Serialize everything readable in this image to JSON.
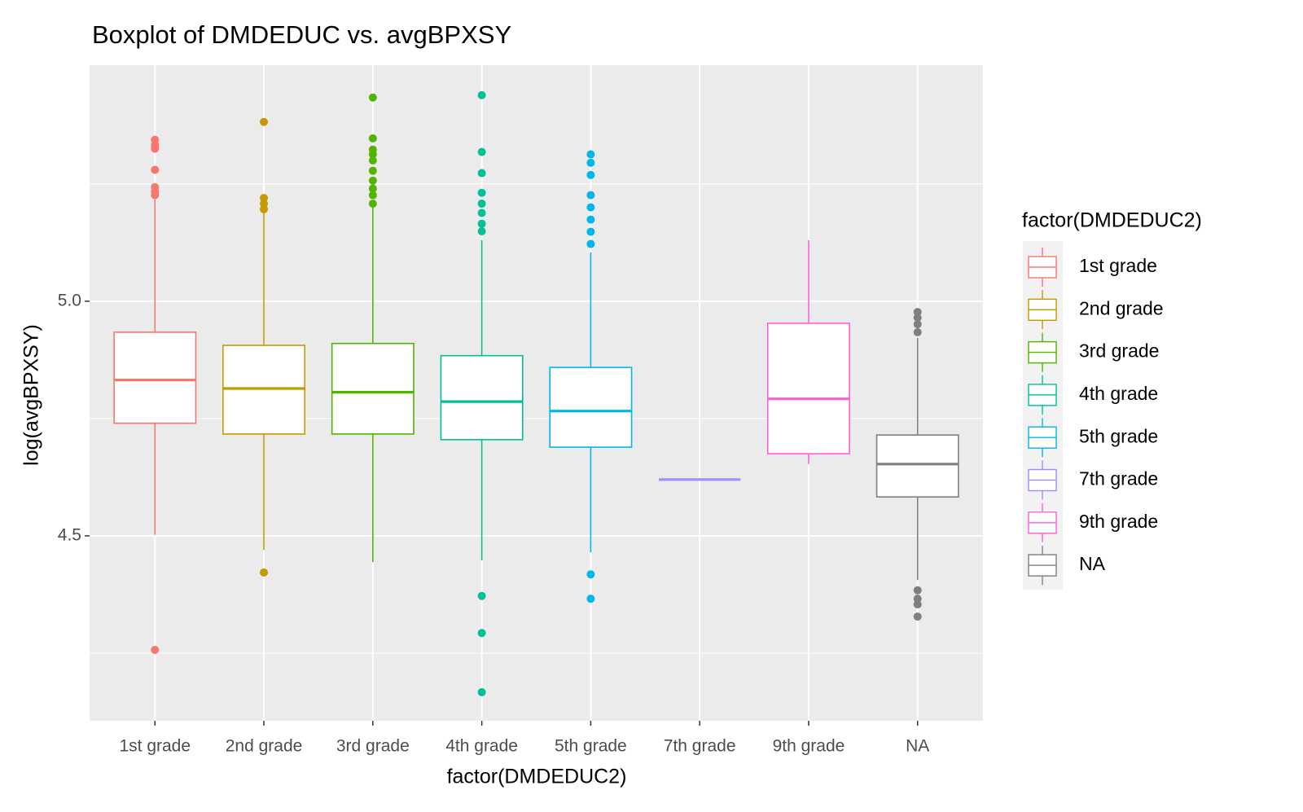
{
  "chart_data": {
    "type": "box",
    "title": "Boxplot of DMDEDUC vs. avgBPXSY",
    "x_label": "factor(DMDEDUC2)",
    "y_label": "log(avgBPXSY)",
    "legend_title": "factor(DMDEDUC2)",
    "legend_position": "right",
    "categories": [
      "1st grade",
      "2nd grade",
      "3rd grade",
      "4th grade",
      "5th grade",
      "7th grade",
      "9th grade",
      "NA"
    ],
    "ylim": [
      4.106,
      5.503
    ],
    "yticks": [
      {
        "value": 4.5,
        "label": "4.5"
      },
      {
        "value": 5,
        "label": "5.0"
      }
    ],
    "minor_yticks": [
      4.25,
      4.75,
      5.25
    ],
    "grid": true,
    "boxes": [
      {
        "color": "#F8766D",
        "whisker_low": 4.502,
        "q1": 4.74,
        "median": 4.832,
        "q3": 4.934,
        "whisker_high": 5.217,
        "outliers": [
          5.344,
          5.333,
          5.325,
          5.28,
          5.243,
          5.233,
          5.226,
          4.257
        ]
      },
      {
        "color": "#C49A00",
        "whisker_low": 4.47,
        "q1": 4.717,
        "median": 4.814,
        "q3": 4.906,
        "whisker_high": 5.188,
        "outliers": [
          5.382,
          5.22,
          5.208,
          5.196,
          4.422
        ]
      },
      {
        "color": "#53B400",
        "whisker_low": 4.444,
        "q1": 4.717,
        "median": 4.806,
        "q3": 4.91,
        "whisker_high": 5.2,
        "outliers": [
          5.434,
          5.347,
          5.323,
          5.313,
          5.3,
          5.278,
          5.257,
          5.24,
          5.226,
          5.208
        ]
      },
      {
        "color": "#00C094",
        "whisker_low": 4.448,
        "q1": 4.705,
        "median": 4.786,
        "q3": 4.884,
        "whisker_high": 5.13,
        "outliers": [
          5.439,
          5.318,
          5.273,
          5.231,
          5.208,
          5.188,
          5.165,
          5.149,
          4.372,
          4.293,
          4.167
        ]
      },
      {
        "color": "#00B6EB",
        "whisker_low": 4.465,
        "q1": 4.689,
        "median": 4.766,
        "q3": 4.859,
        "whisker_high": 5.104,
        "outliers": [
          5.313,
          5.295,
          5.269,
          5.226,
          5.2,
          5.174,
          5.148,
          5.122,
          4.418,
          4.366
        ]
      },
      {
        "color": "#A58AFF",
        "whisker_low": 4.62,
        "q1": 4.62,
        "median": 4.62,
        "q3": 4.62,
        "whisker_high": 4.62,
        "outliers": []
      },
      {
        "color": "#FB61D7",
        "whisker_low": 4.653,
        "q1": 4.675,
        "median": 4.792,
        "q3": 4.953,
        "whisker_high": 5.13,
        "outliers": []
      },
      {
        "color": "#7F7F7F",
        "whisker_low": 4.406,
        "q1": 4.583,
        "median": 4.653,
        "q3": 4.715,
        "whisker_high": 4.922,
        "outliers": [
          4.977,
          4.965,
          4.951,
          4.934,
          4.384,
          4.366,
          4.354,
          4.328
        ]
      }
    ]
  }
}
